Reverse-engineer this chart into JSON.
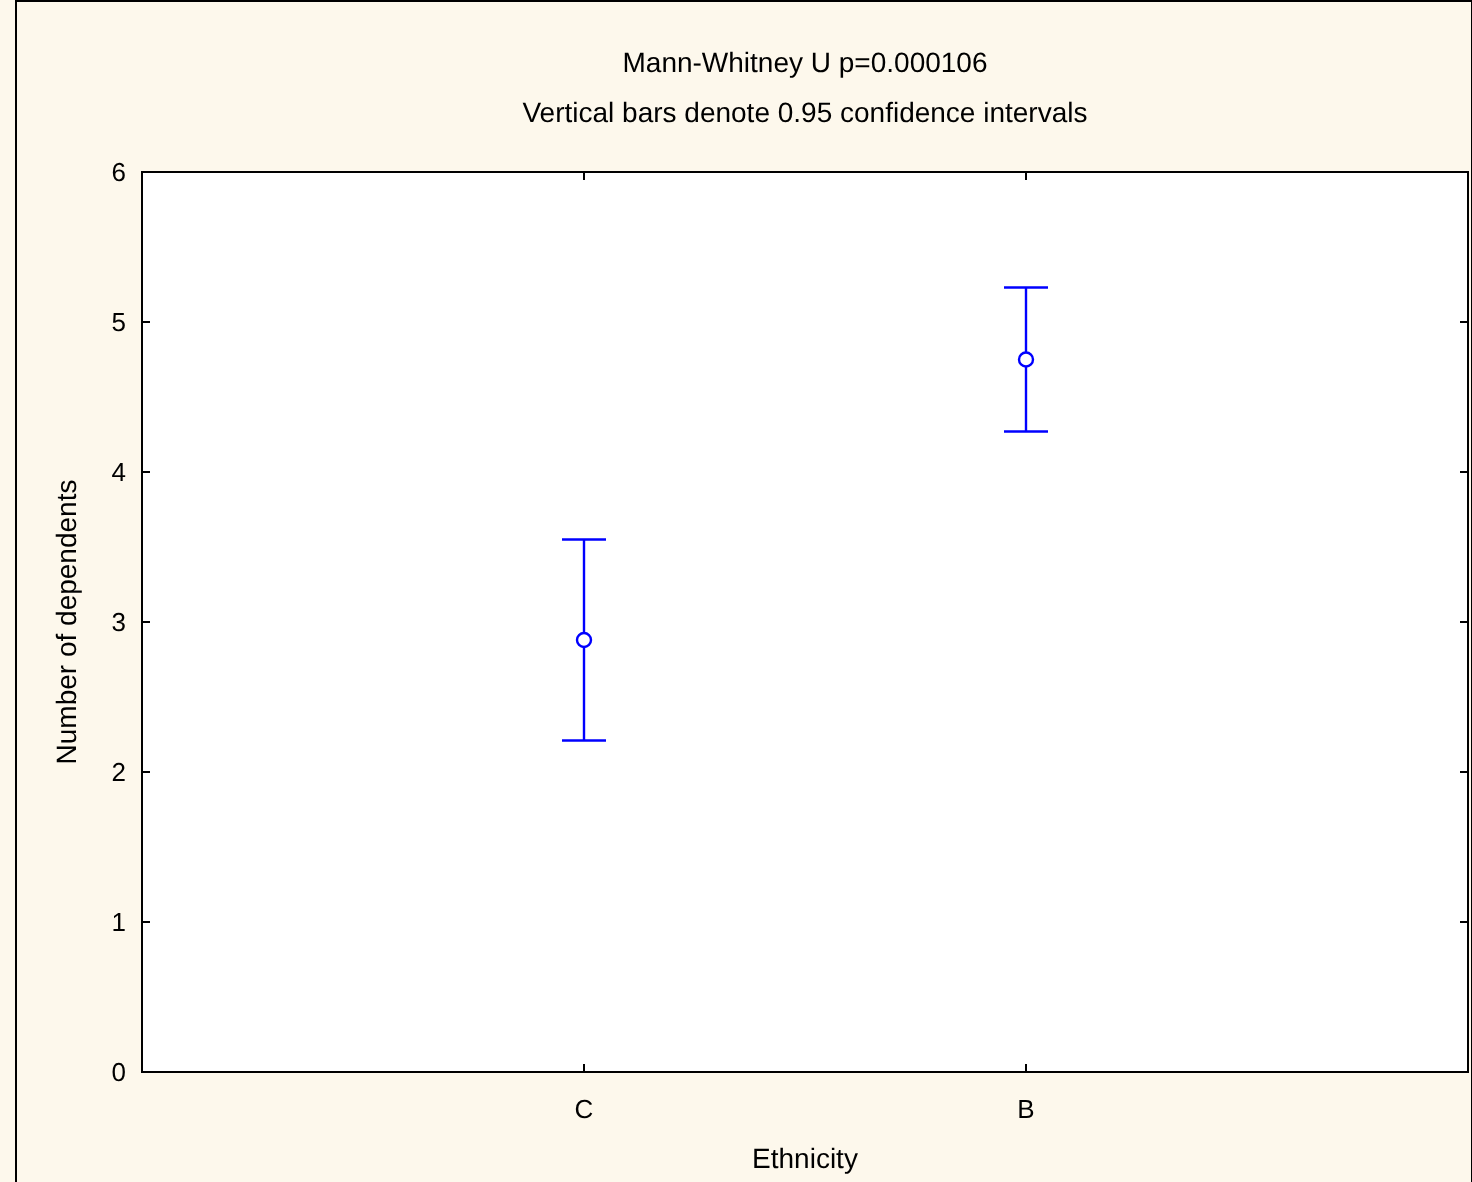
{
  "chart_data": {
    "type": "scatter",
    "title": "Mann-Whitney U p=0.000106",
    "subtitle": "Vertical bars denote 0.95 confidence intervals",
    "xlabel": "Ethnicity",
    "ylabel": "Number of dependents",
    "categories": [
      "C",
      "B"
    ],
    "series": [
      {
        "color": "#0000ff",
        "values": [
          2.88,
          4.75
        ],
        "errors": [
          [
            2.21,
            3.55
          ],
          [
            4.27,
            5.23
          ]
        ]
      }
    ],
    "ylim": [
      0,
      6
    ],
    "yticks": [
      0,
      1,
      2,
      3,
      4,
      5,
      6
    ],
    "marker": "circle"
  }
}
